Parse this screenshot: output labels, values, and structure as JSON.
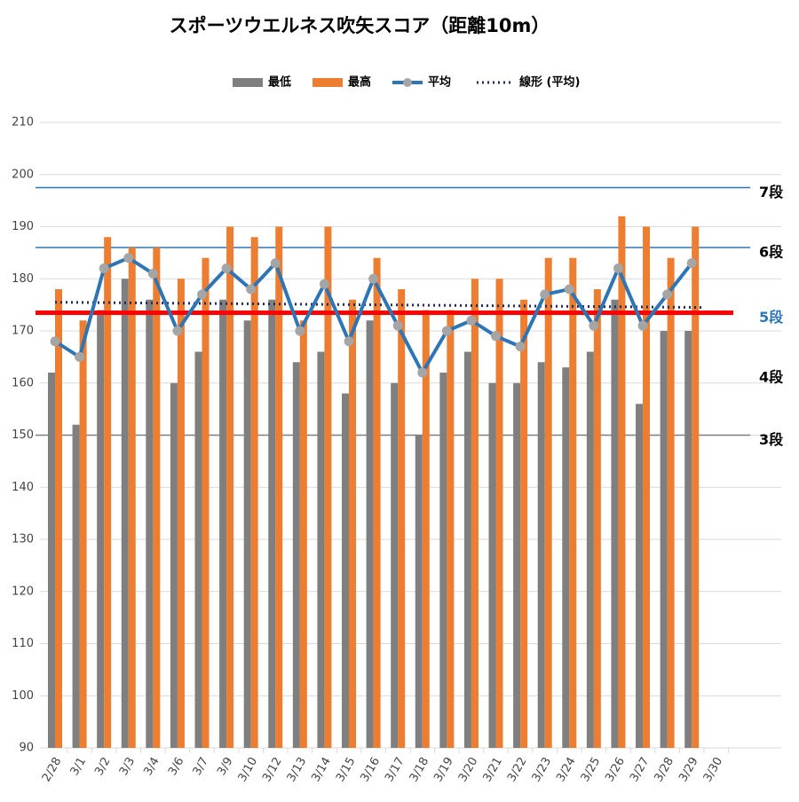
{
  "chart_data": {
    "type": "bar",
    "title": "スポーツウエルネス吹矢スコア（距離10m）",
    "categories": [
      "2/28",
      "3/1",
      "3/2",
      "3/3",
      "3/4",
      "3/6",
      "3/7",
      "3/9",
      "3/10",
      "3/12",
      "3/13",
      "3/14",
      "3/15",
      "3/16",
      "3/17",
      "3/18",
      "3/19",
      "3/20",
      "3/21",
      "3/22",
      "3/23",
      "3/24",
      "3/25",
      "3/26",
      "3/27",
      "3/28",
      "3/29",
      "3/30"
    ],
    "series": [
      {
        "name": "最低",
        "color": "#7f7f7f",
        "kind": "bar",
        "values": [
          162,
          152,
          174,
          180,
          176,
          160,
          166,
          176,
          172,
          176,
          164,
          166,
          158,
          172,
          160,
          150,
          162,
          166,
          160,
          160,
          164,
          163,
          166,
          176,
          156,
          170,
          170,
          null
        ]
      },
      {
        "name": "最高",
        "color": "#ed7d31",
        "kind": "bar",
        "values": [
          178,
          172,
          188,
          186,
          186,
          180,
          184,
          190,
          188,
          190,
          172,
          190,
          176,
          184,
          178,
          174,
          174,
          180,
          180,
          176,
          184,
          184,
          178,
          192,
          190,
          184,
          190,
          null
        ]
      },
      {
        "name": "平均",
        "color": "#2e75b6",
        "marker_color": "#a5a5a5",
        "kind": "line",
        "values": [
          168,
          165,
          182,
          184,
          181,
          170,
          177,
          182,
          178,
          183,
          170,
          179,
          168,
          180,
          171,
          162,
          170,
          172,
          169,
          167,
          177,
          178,
          171,
          182,
          171,
          177,
          183,
          null
        ]
      }
    ],
    "trend": {
      "name": "線形 (平均)",
      "color": "#1f2d5a",
      "start": 175.5,
      "end": 174.5
    },
    "levels": [
      {
        "label": "7段",
        "value": 197.5,
        "line": true,
        "color": "#2e75b6",
        "label_color": "#000000"
      },
      {
        "label": "6段",
        "value": 186,
        "line": true,
        "color": "#2e75b6",
        "label_color": "#000000"
      },
      {
        "label": "5段",
        "value": 173.5,
        "line": true,
        "color": "#ff0000",
        "label_color": "#2e75b6"
      },
      {
        "label": "4段",
        "value": 161,
        "line": false,
        "color": "#000000",
        "label_color": "#000000"
      },
      {
        "label": "3段",
        "value": 150,
        "line": true,
        "color": "#7f7f7f",
        "label_color": "#000000"
      }
    ],
    "ylim": [
      90,
      210
    ],
    "yticks": [
      90,
      100,
      110,
      120,
      130,
      140,
      150,
      160,
      170,
      180,
      190,
      200,
      210
    ],
    "grid": true
  }
}
